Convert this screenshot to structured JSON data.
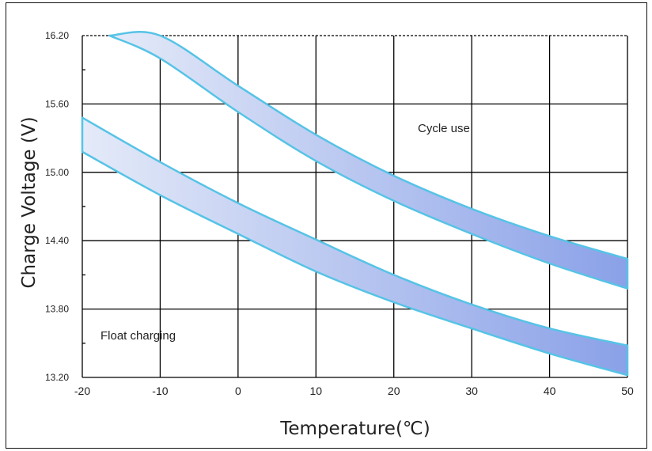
{
  "chart_data": {
    "type": "area",
    "title": "",
    "xlabel": "Temperature(℃)",
    "ylabel": "Charge Voltage  (V)",
    "xlim": [
      -20,
      50
    ],
    "ylim": [
      13.2,
      16.2
    ],
    "xticks": [
      "-20",
      "-10",
      "0",
      "10",
      "20",
      "30",
      "40",
      "50"
    ],
    "yticks": [
      "13.20",
      "13.80",
      "14.40",
      "15.00",
      "15.60",
      "16.20"
    ],
    "grid": true,
    "legend": "none",
    "series": [
      {
        "name": "Cycle use",
        "x": [
          -16.5,
          -10,
          0,
          10,
          20,
          30,
          40,
          50
        ],
        "upper": [
          16.2,
          16.2,
          15.76,
          15.33,
          14.97,
          14.68,
          14.44,
          14.24
        ],
        "lower": [
          16.2,
          16.0,
          15.53,
          15.1,
          14.75,
          14.46,
          14.2,
          13.98
        ]
      },
      {
        "name": "Float charging",
        "x": [
          -20,
          -10,
          0,
          10,
          20,
          30,
          40,
          50
        ],
        "upper": [
          15.48,
          15.09,
          14.73,
          14.41,
          14.1,
          13.84,
          13.63,
          13.48
        ],
        "lower": [
          15.18,
          14.8,
          14.46,
          14.13,
          13.86,
          13.63,
          13.41,
          13.22
        ]
      }
    ],
    "annotations": [
      "Cycle use",
      "Float charging"
    ],
    "colors": {
      "band_edge": "#56c3e6",
      "band_fill_light": "#e4eaf8",
      "band_fill_dark": "#8aa1e8",
      "grid": "#000000"
    }
  }
}
